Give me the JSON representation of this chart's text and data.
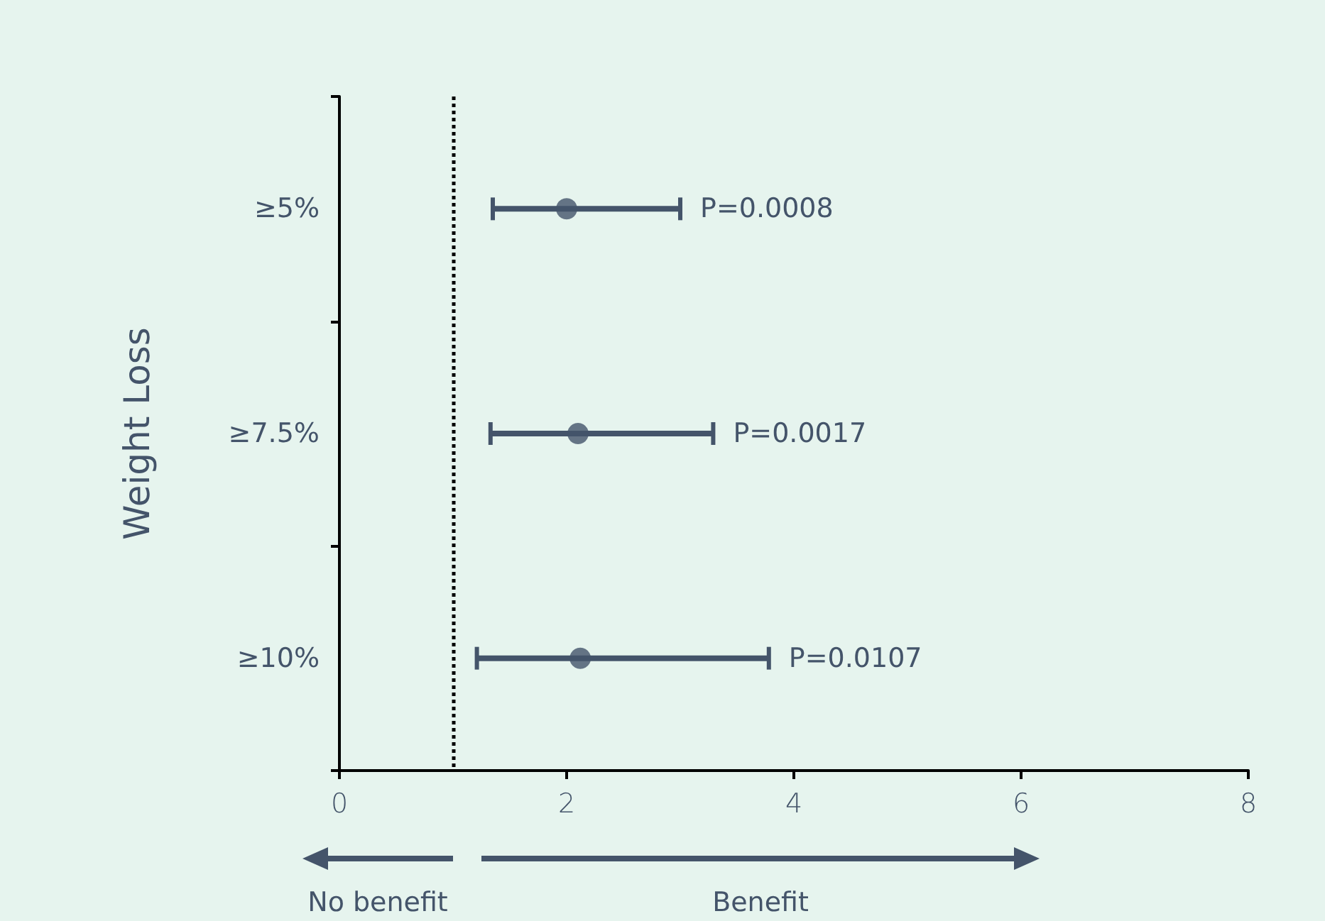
{
  "chart_data": {
    "type": "scatter",
    "orientation": "horizontal",
    "ylabel": "Weight Loss",
    "categories": [
      "≥5%",
      "≥7.5%",
      "≥10%"
    ],
    "values": [
      2.0,
      2.1,
      2.12
    ],
    "errors": [
      [
        1.35,
        3.0
      ],
      [
        1.33,
        3.29
      ],
      [
        1.21,
        3.78
      ]
    ],
    "color": "#44546a",
    "marker": "circle",
    "xlim": [
      0,
      8
    ],
    "xticks": [
      0,
      2,
      4,
      6,
      8
    ],
    "grid": false,
    "ref_lines": [
      {
        "axis": "x",
        "value": 1,
        "line_style": "dotted",
        "color": "#000000"
      }
    ],
    "annotations": [
      "P=0.0008",
      "P=0.0017",
      "P=0.0107",
      "No benefit",
      "Benefit"
    ]
  }
}
